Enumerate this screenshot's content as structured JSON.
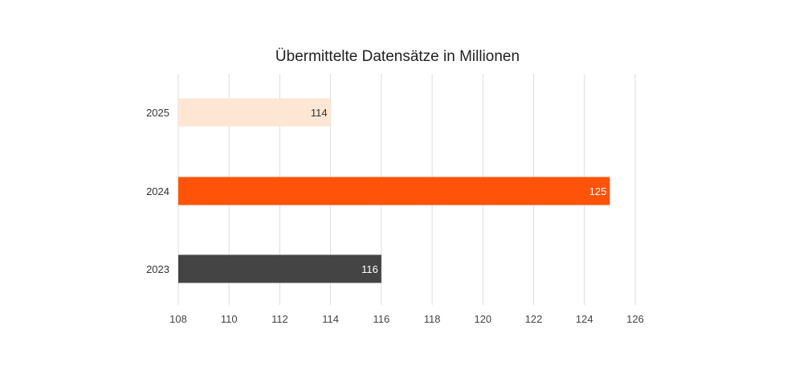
{
  "chart_data": {
    "type": "bar",
    "orientation": "horizontal",
    "title": "Übermittelte Datensätze in Millionen",
    "categories": [
      "2025",
      "2024",
      "2023"
    ],
    "values": [
      114,
      125,
      116
    ],
    "bar_colors": [
      "#fde6d4",
      "#ff5309",
      "#444444"
    ],
    "label_colors": [
      "#333333",
      "#ffffff",
      "#ffffff"
    ],
    "xlim": [
      108,
      126
    ],
    "xticks": [
      108,
      110,
      112,
      114,
      116,
      118,
      120,
      122,
      124,
      126
    ],
    "grid": true,
    "legend": "none"
  }
}
